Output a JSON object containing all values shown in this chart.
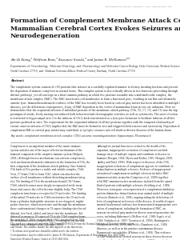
{
  "background_color": "#ffffff",
  "journal_line": "The Journal of Neuroscience, February 1, 2002 • 22(3):844–860 • 845",
  "title": "Formation of Complement Membrane Attack Complex in\nMammalian Cerebral Cortex Evokes Seizures and\nNeurodegeneration",
  "title_fontsize": 5.8,
  "title_color": "#111111",
  "authors": "Zhi-Qi Xiong,¹ Wolfram Banz,² Kazunari Suzuki,³ and James R. McNamara¹²³",
  "authors_fontsize": 2.8,
  "affiliations": "Departments of ¹Neurobiology, ²Medicine-Neurology, and ³Pharmacology and Molecular Cancer Biology, Duke University Medical Science Durham,\nNorth Carolina 27710, and ³Durham Veterans Affairs Medical Center, Durham, North Carolina 27710",
  "affiliations_fontsize": 2.2,
  "abstract_fontsize": 2.2,
  "abstract_text": "The complement system consists of >30 proteins that interact in a carefully regulated manner to destroy invading bacteria and prevent\nthe deposition of immune complexes in normal tissue. This complex system is also critically driven in two functions proceeding through\ndistinct pathways, yet all converge on a final common pathway in which five proteins assemble into a multimolecular complex, the\nmembrane attack complex (MAC). The MAC inserts into cell membranes to form a functional pore, resulting in ion flux and ultimately\nosmotic lysis. Immunohistochemical evidence of the MAC has recently been found in cortical gray matter has been identified in multiple CNS\ndiseases, yet the deleterious consequences, if any, of MAC deposition in the cortex of mammalian brain in vivo are unknown. Here we\ndemonstrate that the sequential infusion of individual proteins of the membrane attack pathway (C5b, C6, C7, C8, and C9) into the hip-\npocampus of awake, freely moving rats induced both behavioral and electrographic activities as well as cytotoxicity. The onset of action\nis restricted to hippocampal area 3 to the infusion of C9(5) bath-concentrated as a lytic pore formation to facilitate infusion of all five\nproteins perfused in vitro. The requirement for the sequential infusion of all five proteins together with the temporal relationship of\nseizure onset in infusion of C9(5) implies that the BAC must be formed in vivo and triggered both seizures and cytotoxicity. Deposition of the\ncomplement BAI in cortical gray matter may contribute to epileptic seizures and cell death in diverse diseases of the human brain.",
  "keywords_text": "Key words: complement membrane attack complex; C9(5) seizures; neurodegeneration; hippocampus; Plasminase b",
  "keywords_fontsize": 2.2,
  "col_fontsize": 2.1,
  "body_left": "Complement is an important member of the innate immune\nsystem and also one of the major effector mechanisms of the\nhumoral component of the adaptive immune system (Walport,\n2001). Although diverse mechanisms can activate complement,\neach mechanism ultimately culminates in the formation of C5b, the\nfirst component of the membrane attack pathway. Once formed,\nC5b binds nC6 to produce a stable and soluble complex, C5b6.\nNext, C7 binds C5b6 to form C5b7, which can attach to the\nsurface of cell membranes without disturbing membrane integ-\nrity. The binding of C8 to the membrane-bound C5b7 forms\nC5b8, which becomes more deeply incorporated in the mem-\nbrane and causes the cell to become slightly leaky. The C5b8\ncomplex in turn forms a receptor for C9 molecules. The binding\nof the initial C9 molecule to C5b8 reorientates the C9 molecule\nfrom a globular, hydrophilic structure to an elongated, amphi-\npathic structure, which inserts into and through the membrane;\nthese conformational changes in C9 expose binding sites for ad-\nditional, two-lined, added, and insert into the membrane. Ad-\ndition of as many as 18 copies of C9 to the C5b8 complex forms\nthe membrane attack complex (MAC), resulting in ion flux and\nosmotic lysis of target cells (Zalengur, 1994).",
  "body_right": "Although its normal function is critical to the health of the\norganism, inappropriate activation of complement can both\ndamage tissue of multiple organs and contribute to disease in\nhumans (Morgan, 1994; Myers and Kallen, 1995; Morgan, 1999;\nAndley and Patel, 1996). With respect to diseases of the CNS,\ninappropriate activation of complement appears to contribute to\ndemyelination in multiple sclerosis. Evidence of inappropriate\nactivation of complement in multiple sclerosis includes MAC\nimmunoreactivity in myelin (Compston et al., 1989) together\nwith MAC immunoreactive membranes isolated from the spinal\nfluid of patients with multiple sclerosis (Scolding et al., 1989).\nMoreover, transgenic overexpression of a complement inhibitory\nprotein diminishes demyelination in an animal model of multiple\nsclerosis (Burnett et al., 1999), arguing ruling the deleterious ef-\nfects of complement in diseases of the disease. A wealth of exper-\nimental biochemical evidence has demonstrated inappropriate acti-\nvation of complement, including the formation of MAC, on\nneurons in cortical gray matter in diverse neurodegenerative dis-\neases, including Alzheimer's (McBeer et al., 1989; Iegale et al.,\n1994; Nishida et al., 1987; Trouton et al., 1999), Huntington's\n(Stephenson et al., 1999), and Falk's (Fiamboro et al., 1999)\nillnesses, as well as in the putative autoimmune disease\nRasmussen's encephalitis (Whitney et al., 1999). This evidence\nof MAC formation on cortical neurons in these diverse diseases\nnotwithstanding, whether the deposition of MAC in cortical gray\nmatter in the mammalian brain has deleterious consequences is\nuncertain. The demonstration that the formation of MAC in\nmuscle cell membranes results in depolarization (Jackson et al.,\n1981) together with the cytotoxic effects of MAC in cortical\nneurons in vitro",
  "footnotes": "Received July 23, 2001; received July 1, 2001; accepted Nov. 4, 2001.\nThis work was supported in part by NIH Grant R01NS03220 from the National Institute of Neurological Disorders\nand Stroke. The authors thanks the investigators at the laboratory.\n† To whom correspondence should be addressed to the authors.\nCorrespondence may be addressed to: James R. McNamara, Department of Neurobiology, Box 3209, Duke\nUniversity Medical Science Center at (919) 284-5104.\nE-mail: john@neurolab.net\nDOI:10.1523/JNEUROSCI.1223-01.2002\nCopyright © 2002 Society for Neuroscience 0270-6474/02/220845-17$15.00/0",
  "footnotes_fontsize": 1.9
}
